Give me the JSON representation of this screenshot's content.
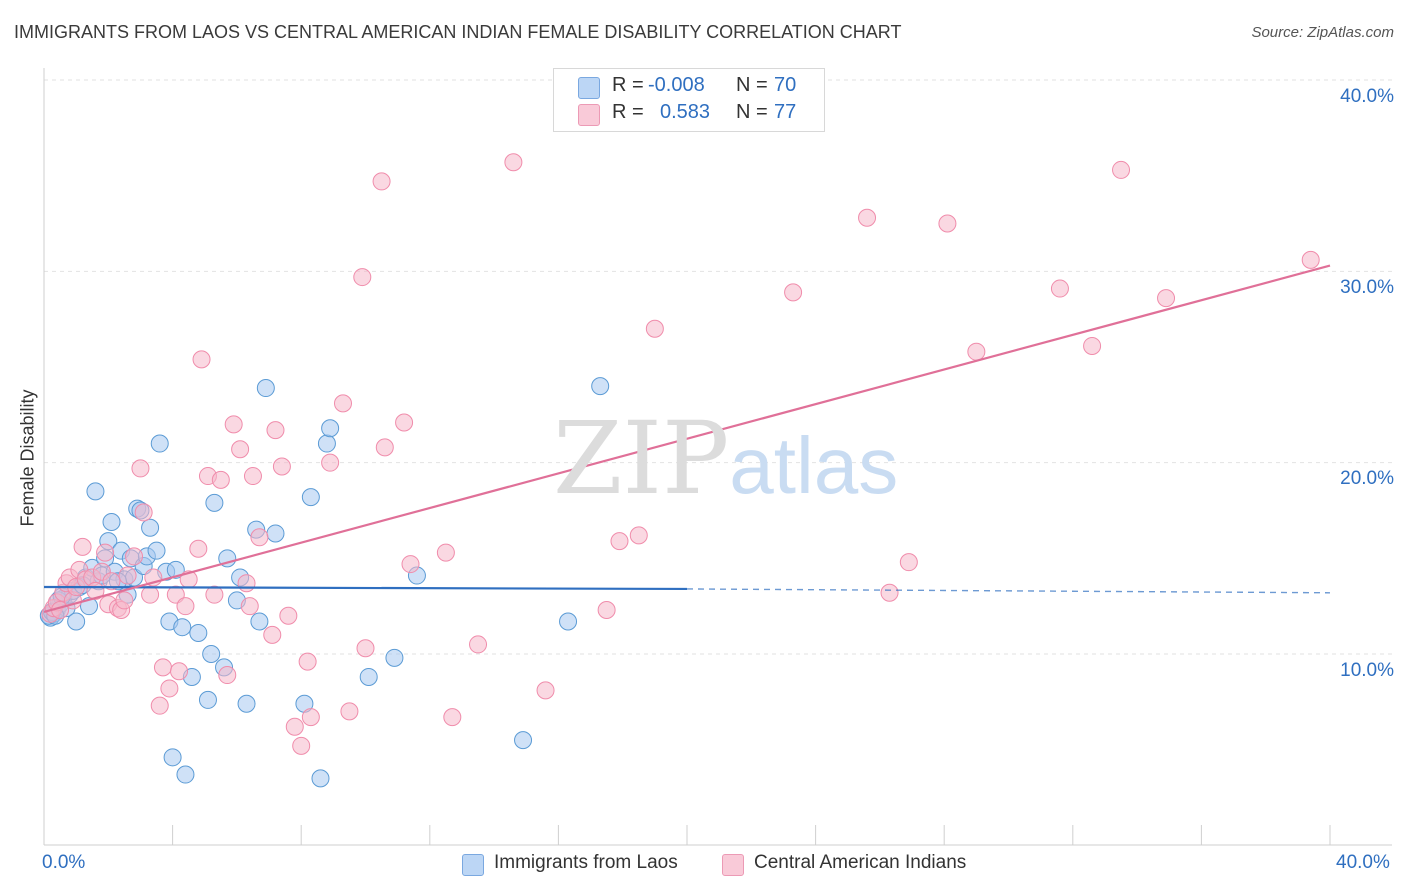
{
  "title": "IMMIGRANTS FROM LAOS VS CENTRAL AMERICAN INDIAN FEMALE DISABILITY CORRELATION CHART",
  "source": "Source: ZipAtlas.com",
  "watermark": {
    "zip": "ZIP",
    "atlas": "atlas"
  },
  "legend": {
    "rows": [
      {
        "r_label": "R =",
        "r_value": "-0.008",
        "n_label": "N =",
        "n_value": "70",
        "color": "#a8c8f0"
      },
      {
        "r_label": "R =",
        "r_value": "0.583",
        "n_label": "N =",
        "n_value": "77",
        "color": "#f5b8cb"
      }
    ]
  },
  "chart_data": {
    "type": "scatter",
    "title": "IMMIGRANTS FROM LAOS VS CENTRAL AMERICAN INDIAN FEMALE DISABILITY CORRELATION CHART",
    "xlabel": "",
    "ylabel": "Female Disability",
    "xlim": [
      0,
      40
    ],
    "ylim": [
      0,
      40
    ],
    "x_tick_labels": [
      "0.0%",
      "40.0%"
    ],
    "y_tick_values": [
      10,
      20,
      30,
      40
    ],
    "y_tick_labels": [
      "10.0%",
      "20.0%",
      "30.0%",
      "40.0%"
    ],
    "grid": true,
    "legend_placement": "bottom",
    "series": [
      {
        "name": "Immigrants from Laos",
        "color": "#5b9bd5",
        "fill": "#a8c8f0",
        "trend": {
          "x": [
            0,
            20
          ],
          "y": [
            13.5,
            13.4
          ],
          "dashed_extension": {
            "x": [
              20,
              40
            ],
            "y": [
              13.4,
              13.2
            ]
          },
          "color": "#2f6fc0"
        },
        "points": [
          [
            0.2,
            11.9
          ],
          [
            0.3,
            12.1
          ],
          [
            0.4,
            12.3
          ],
          [
            0.5,
            12.6
          ],
          [
            0.6,
            12.9
          ],
          [
            0.7,
            12.4
          ],
          [
            0.8,
            13.1
          ],
          [
            0.9,
            13.3
          ],
          [
            1.0,
            11.7
          ],
          [
            1.1,
            13.5
          ],
          [
            1.3,
            14.0
          ],
          [
            1.4,
            12.5
          ],
          [
            1.5,
            14.5
          ],
          [
            1.6,
            18.5
          ],
          [
            1.7,
            13.8
          ],
          [
            1.8,
            14.1
          ],
          [
            1.9,
            15.0
          ],
          [
            2.0,
            15.9
          ],
          [
            2.1,
            16.9
          ],
          [
            2.2,
            14.3
          ],
          [
            2.4,
            15.4
          ],
          [
            2.5,
            13.9
          ],
          [
            2.6,
            13.1
          ],
          [
            2.7,
            15.0
          ],
          [
            2.8,
            14.0
          ],
          [
            2.9,
            17.6
          ],
          [
            3.0,
            17.5
          ],
          [
            3.1,
            14.6
          ],
          [
            3.2,
            15.1
          ],
          [
            3.3,
            16.6
          ],
          [
            3.5,
            15.4
          ],
          [
            3.6,
            21.0
          ],
          [
            3.8,
            14.3
          ],
          [
            3.9,
            11.7
          ],
          [
            4.0,
            4.6
          ],
          [
            4.1,
            14.4
          ],
          [
            4.3,
            11.4
          ],
          [
            4.4,
            3.7
          ],
          [
            4.6,
            8.8
          ],
          [
            4.8,
            11.1
          ],
          [
            5.1,
            7.6
          ],
          [
            5.2,
            10.0
          ],
          [
            5.3,
            17.9
          ],
          [
            5.6,
            9.3
          ],
          [
            5.7,
            15.0
          ],
          [
            6.0,
            12.8
          ],
          [
            6.1,
            14.0
          ],
          [
            6.3,
            7.4
          ],
          [
            6.6,
            16.5
          ],
          [
            6.7,
            11.7
          ],
          [
            6.9,
            23.9
          ],
          [
            7.2,
            16.3
          ],
          [
            8.1,
            7.4
          ],
          [
            8.3,
            18.2
          ],
          [
            8.6,
            3.5
          ],
          [
            8.8,
            21.0
          ],
          [
            8.9,
            21.8
          ],
          [
            10.1,
            8.8
          ],
          [
            10.9,
            9.8
          ],
          [
            11.6,
            14.1
          ],
          [
            14.9,
            5.5
          ],
          [
            16.3,
            11.7
          ],
          [
            17.3,
            24.0
          ],
          [
            0.15,
            12.0
          ],
          [
            0.25,
            12.2
          ],
          [
            0.35,
            12.0
          ],
          [
            0.45,
            12.8
          ],
          [
            0.55,
            13.0
          ],
          [
            1.2,
            13.6
          ],
          [
            2.3,
            13.8
          ]
        ]
      },
      {
        "name": "Central American Indians",
        "color": "#f08cab",
        "fill": "#f5b8cb",
        "trend": {
          "x": [
            0,
            40
          ],
          "y": [
            12.2,
            30.3
          ],
          "color": "#e07098"
        },
        "points": [
          [
            0.2,
            12.1
          ],
          [
            0.3,
            12.4
          ],
          [
            0.4,
            12.7
          ],
          [
            0.5,
            12.3
          ],
          [
            0.6,
            13.2
          ],
          [
            0.7,
            13.7
          ],
          [
            0.8,
            14.0
          ],
          [
            0.9,
            12.8
          ],
          [
            1.0,
            13.5
          ],
          [
            1.1,
            14.4
          ],
          [
            1.2,
            15.6
          ],
          [
            1.3,
            13.9
          ],
          [
            1.5,
            14.0
          ],
          [
            1.6,
            13.3
          ],
          [
            1.8,
            14.3
          ],
          [
            1.9,
            15.3
          ],
          [
            2.0,
            12.6
          ],
          [
            2.1,
            13.8
          ],
          [
            2.3,
            12.4
          ],
          [
            2.4,
            12.3
          ],
          [
            2.5,
            12.8
          ],
          [
            2.6,
            14.1
          ],
          [
            2.8,
            15.1
          ],
          [
            3.0,
            19.7
          ],
          [
            3.1,
            17.4
          ],
          [
            3.3,
            13.1
          ],
          [
            3.4,
            14.0
          ],
          [
            3.6,
            7.3
          ],
          [
            3.7,
            9.3
          ],
          [
            3.9,
            8.2
          ],
          [
            4.1,
            13.1
          ],
          [
            4.2,
            9.1
          ],
          [
            4.4,
            12.5
          ],
          [
            4.5,
            13.9
          ],
          [
            4.8,
            15.5
          ],
          [
            4.9,
            25.4
          ],
          [
            5.1,
            19.3
          ],
          [
            5.3,
            13.1
          ],
          [
            5.5,
            19.1
          ],
          [
            5.7,
            8.9
          ],
          [
            5.9,
            22.0
          ],
          [
            6.1,
            20.7
          ],
          [
            6.3,
            13.7
          ],
          [
            6.4,
            12.5
          ],
          [
            6.5,
            19.3
          ],
          [
            6.7,
            16.1
          ],
          [
            7.1,
            11.0
          ],
          [
            7.2,
            21.7
          ],
          [
            7.4,
            19.8
          ],
          [
            7.6,
            12.0
          ],
          [
            7.8,
            6.2
          ],
          [
            8.0,
            5.2
          ],
          [
            8.2,
            9.6
          ],
          [
            8.3,
            6.7
          ],
          [
            8.9,
            20.0
          ],
          [
            9.3,
            23.1
          ],
          [
            9.5,
            7.0
          ],
          [
            9.9,
            29.7
          ],
          [
            10.0,
            10.3
          ],
          [
            10.5,
            34.7
          ],
          [
            10.6,
            20.8
          ],
          [
            11.2,
            22.1
          ],
          [
            11.4,
            14.7
          ],
          [
            12.5,
            15.3
          ],
          [
            12.7,
            6.7
          ],
          [
            13.5,
            10.5
          ],
          [
            14.6,
            35.7
          ],
          [
            15.6,
            8.1
          ],
          [
            17.5,
            12.3
          ],
          [
            17.9,
            15.9
          ],
          [
            18.5,
            16.2
          ],
          [
            19.0,
            27.0
          ],
          [
            23.3,
            28.9
          ],
          [
            25.6,
            32.8
          ],
          [
            26.3,
            13.2
          ],
          [
            26.9,
            14.8
          ],
          [
            28.1,
            32.5
          ]
        ],
        "extra_points": [
          [
            29.0,
            25.8
          ],
          [
            31.6,
            29.1
          ],
          [
            32.6,
            26.1
          ],
          [
            33.5,
            35.3
          ],
          [
            34.9,
            28.6
          ],
          [
            39.4,
            30.6
          ]
        ]
      }
    ]
  },
  "bottom_legend": [
    {
      "label": "Immigrants from Laos",
      "color": "#a8c8f0"
    },
    {
      "label": "Central American Indians",
      "color": "#f5b8cb"
    }
  ]
}
